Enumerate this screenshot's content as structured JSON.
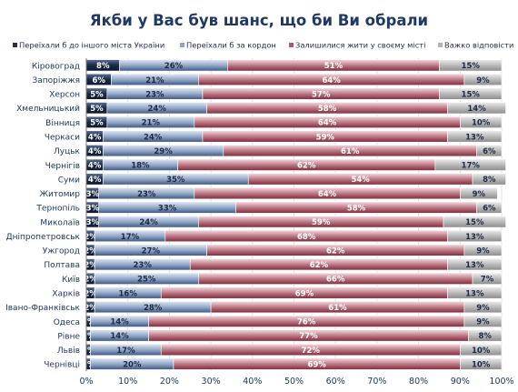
{
  "chart_data": {
    "type": "bar",
    "stacked": true,
    "orientation": "horizontal",
    "title": "Якби у Вас був шанс, що би Ви обрали",
    "xlim": [
      0,
      100
    ],
    "x_ticks": [
      "0%",
      "10%",
      "20%",
      "30%",
      "40%",
      "50%",
      "60%",
      "70%",
      "80%",
      "90%",
      "100%"
    ],
    "legend_position": "top",
    "categories": [
      "Кіровоград",
      "Запоріжжя",
      "Херсон",
      "Хмельницький",
      "Вінниця",
      "Черкаси",
      "Луцьк",
      "Чернігів",
      "Суми",
      "Житомир",
      "Тернопіль",
      "Миколаїв",
      "Дніпропетровськ",
      "Ужгород",
      "Полтава",
      "Київ",
      "Харків",
      "Івано-Франківськ",
      "Одеса",
      "Рівне",
      "Львів",
      "Чернівці"
    ],
    "series": [
      {
        "name": "Переїхали б до іншого міста України",
        "color": "#1f3050",
        "values": [
          8,
          6,
          5,
          5,
          5,
          4,
          4,
          4,
          4,
          3,
          3,
          3,
          2,
          2,
          2,
          2,
          2,
          2,
          1,
          1,
          1,
          1
        ]
      },
      {
        "name": "Переїхали б за кордон",
        "color": "#8fa6c7",
        "values": [
          26,
          21,
          23,
          24,
          21,
          24,
          29,
          18,
          35,
          23,
          33,
          24,
          17,
          27,
          23,
          25,
          16,
          28,
          14,
          14,
          17,
          20
        ]
      },
      {
        "name": "Залишилися жити у своєму місті",
        "color": "#b05a68",
        "values": [
          51,
          64,
          57,
          58,
          64,
          59,
          61,
          62,
          54,
          64,
          58,
          59,
          68,
          62,
          62,
          66,
          69,
          61,
          76,
          77,
          72,
          69
        ]
      },
      {
        "name": "Важко відповісти",
        "color": "#b3b3b3",
        "values": [
          15,
          9,
          15,
          14,
          10,
          13,
          6,
          17,
          8,
          9,
          6,
          15,
          13,
          9,
          13,
          7,
          13,
          9,
          9,
          8,
          10,
          10
        ]
      }
    ]
  }
}
